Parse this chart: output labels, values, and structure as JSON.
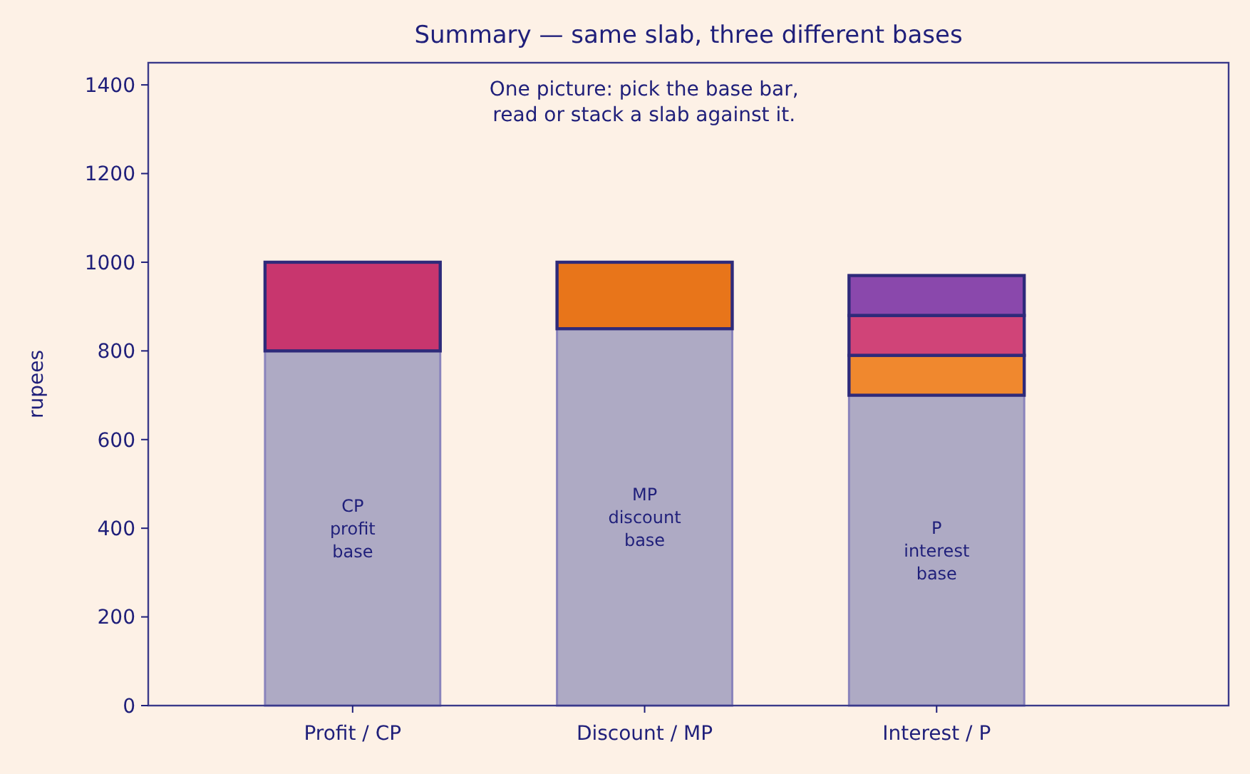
{
  "chart_data": {
    "type": "bar",
    "title": "Summary — same slab, three different bases",
    "ylabel": "rupees",
    "categories": [
      "Profit / CP",
      "Discount / MP",
      "Interest / P"
    ],
    "stacked": true,
    "series": [
      {
        "color": "#aeaac4",
        "values": [
          800,
          850,
          700
        ]
      },
      {
        "colors": [
          "#c8366e",
          "#e8751a",
          "#f0882e"
        ],
        "values": [
          200,
          150,
          90
        ]
      },
      {
        "color": "#d04478",
        "values": [
          null,
          null,
          90
        ]
      },
      {
        "color": "#8a48ac",
        "values": [
          null,
          null,
          90
        ]
      }
    ],
    "ylim": [
      0,
      1450
    ],
    "yticks": [
      0,
      200,
      400,
      600,
      800,
      1000,
      1200,
      1400
    ],
    "annotations": [
      "One picture: pick the base bar,\nread or stack a slab against it.",
      "CP\nprofit\nbase",
      "MP\ndiscount\nbase",
      "P\ninterest\nbase"
    ]
  }
}
